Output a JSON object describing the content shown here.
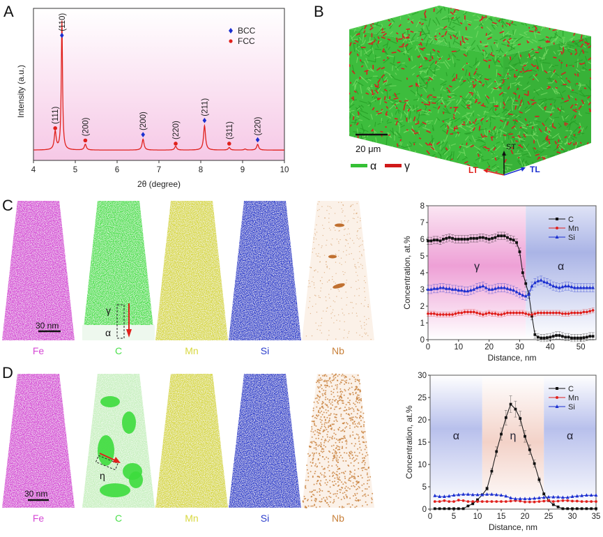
{
  "panels": {
    "A": "A",
    "B": "B",
    "C": "C",
    "D": "D"
  },
  "colors": {
    "red": "#e0201c",
    "blue": "#1b2fd0",
    "black": "#111111",
    "bcc": "#1b2fd0",
    "fcc": "#e0201c",
    "alpha_green": "#35c035",
    "gamma_red": "#d01818",
    "fe": "#d64ad6",
    "c": "#4de04d",
    "mn": "#d8d840",
    "si": "#2a3ccc",
    "nb": "#c8803a"
  },
  "panel_b": {
    "scale_bar": "20 μm",
    "legend": [
      {
        "symbol": "α",
        "color": "#35c035"
      },
      {
        "symbol": "γ",
        "color": "#d01818"
      }
    ],
    "axes": {
      "st": "ST",
      "lt": "LT",
      "tl": "TL"
    }
  },
  "panel_c": {
    "scale_bar": "30 nm",
    "elements": [
      "Fe",
      "C",
      "Mn",
      "Si",
      "Nb"
    ],
    "phase_labels": {
      "gamma": "γ",
      "alpha": "α"
    }
  },
  "panel_d": {
    "scale_bar": "30 nm",
    "elements": [
      "Fe",
      "C",
      "Mn",
      "Si",
      "Nb"
    ],
    "phase_labels": {
      "eta": "η"
    }
  },
  "chart_data": [
    {
      "id": "A",
      "type": "line",
      "title": "",
      "xlabel": "2θ (degree)",
      "ylabel": "Intensity (a.u.)",
      "xlim": [
        4,
        10
      ],
      "ylim": [
        -0.08,
        1.1
      ],
      "xticks": [
        4,
        5,
        6,
        7,
        8,
        9,
        10
      ],
      "grid": false,
      "legend": {
        "position": "top-right",
        "entries": [
          {
            "label": "BCC",
            "marker": "diamond"
          },
          {
            "label": "FCC",
            "marker": "circle"
          }
        ]
      },
      "peaks": [
        {
          "x": 4.52,
          "height": 0.14,
          "phase": "FCC",
          "label": "(111)",
          "marker_y": 0.17
        },
        {
          "x": 4.68,
          "height": 1.0,
          "phase": "BCC",
          "label": "(110)",
          "marker_y": 0.89
        },
        {
          "x": 5.24,
          "height": 0.045,
          "phase": "FCC",
          "label": "(200)",
          "marker_y": 0.075
        },
        {
          "x": 6.62,
          "height": 0.085,
          "phase": "BCC",
          "label": "(200)",
          "marker_y": 0.12
        },
        {
          "x": 7.4,
          "height": 0.03,
          "phase": "FCC",
          "label": "(220)",
          "marker_y": 0.05
        },
        {
          "x": 8.09,
          "height": 0.19,
          "phase": "BCC",
          "label": "(211)",
          "marker_y": 0.23
        },
        {
          "x": 8.68,
          "height": 0.02,
          "phase": "FCC",
          "label": "(311)",
          "marker_y": 0.05
        },
        {
          "x": 9.06,
          "height": 0.008,
          "phase": "",
          "label": "",
          "marker_y": null
        },
        {
          "x": 9.36,
          "height": 0.045,
          "phase": "BCC",
          "label": "(220)",
          "marker_y": 0.08
        }
      ]
    },
    {
      "id": "C",
      "type": "line",
      "xlabel": "Distance, nm",
      "ylabel": "Concentration, at.%",
      "xlim": [
        0,
        55
      ],
      "ylim": [
        0,
        8
      ],
      "xticks": [
        0,
        10,
        20,
        30,
        40,
        50
      ],
      "yticks": [
        0,
        1,
        2,
        3,
        4,
        5,
        6,
        7,
        8
      ],
      "legend": {
        "position": "top-right"
      },
      "regions": [
        {
          "from": 0,
          "to": 32,
          "label": "γ",
          "phase": "gamma"
        },
        {
          "from": 32,
          "to": 55,
          "label": "α",
          "phase": "alpha"
        }
      ],
      "x_start": 0,
      "x_step": 1,
      "series": [
        {
          "name": "C",
          "color": "#111111",
          "marker": "square",
          "error": 0.22,
          "values": [
            5.9,
            5.9,
            5.95,
            5.95,
            5.9,
            6.0,
            6.05,
            6.1,
            6.05,
            6.0,
            6.0,
            6.0,
            6.0,
            6.0,
            6.05,
            6.05,
            6.05,
            6.1,
            6.1,
            6.05,
            6.0,
            6.05,
            6.1,
            6.2,
            6.2,
            6.2,
            6.1,
            6.0,
            5.95,
            5.8,
            5.25,
            4.0,
            3.35,
            2.7,
            1.4,
            0.3,
            0.15,
            0.1,
            0.1,
            0.12,
            0.15,
            0.2,
            0.25,
            0.25,
            0.2,
            0.15,
            0.15,
            0.1,
            0.1,
            0.1,
            0.1,
            0.12,
            0.15,
            0.2,
            0.2
          ]
        },
        {
          "name": "Mn",
          "color": "#e0201c",
          "marker": "circle",
          "error": 0.15,
          "values": [
            1.55,
            1.55,
            1.55,
            1.5,
            1.5,
            1.5,
            1.5,
            1.5,
            1.5,
            1.55,
            1.6,
            1.6,
            1.65,
            1.65,
            1.65,
            1.65,
            1.6,
            1.55,
            1.5,
            1.55,
            1.6,
            1.55,
            1.55,
            1.5,
            1.5,
            1.55,
            1.6,
            1.6,
            1.6,
            1.6,
            1.6,
            1.6,
            1.55,
            1.5,
            1.5,
            1.55,
            1.6,
            1.6,
            1.6,
            1.6,
            1.6,
            1.6,
            1.6,
            1.6,
            1.55,
            1.55,
            1.55,
            1.6,
            1.6,
            1.6,
            1.6,
            1.65,
            1.65,
            1.7,
            1.75
          ]
        },
        {
          "name": "Si",
          "color": "#1b2fd0",
          "marker": "triangle",
          "error": 0.25,
          "values": [
            3.0,
            3.0,
            3.05,
            3.05,
            3.1,
            3.1,
            3.05,
            3.05,
            3.0,
            3.0,
            2.95,
            2.95,
            2.9,
            2.9,
            2.95,
            3.0,
            3.1,
            3.15,
            3.2,
            3.1,
            3.0,
            3.0,
            3.05,
            3.1,
            3.1,
            3.1,
            3.05,
            3.0,
            2.95,
            2.85,
            2.75,
            2.65,
            2.6,
            2.7,
            3.2,
            3.4,
            3.5,
            3.55,
            3.45,
            3.4,
            3.3,
            3.2,
            3.15,
            3.1,
            3.15,
            3.2,
            3.2,
            3.15,
            3.1,
            3.1,
            3.1,
            3.1,
            3.1,
            3.1,
            3.1
          ]
        }
      ]
    },
    {
      "id": "D",
      "type": "line",
      "xlabel": "Distance, nm",
      "ylabel": "Concentration, at.%",
      "xlim": [
        0,
        35
      ],
      "ylim": [
        0,
        30
      ],
      "xticks": [
        0,
        5,
        10,
        15,
        20,
        25,
        30,
        35
      ],
      "yticks": [
        0,
        5,
        10,
        15,
        20,
        25,
        30
      ],
      "legend": {
        "position": "top-right"
      },
      "regions": [
        {
          "from": 0,
          "to": 11,
          "label": "α",
          "phase": "alpha"
        },
        {
          "from": 11,
          "to": 24,
          "label": "η",
          "phase": "eta"
        },
        {
          "from": 24,
          "to": 35,
          "label": "α",
          "phase": "alpha"
        }
      ],
      "x_start": 1,
      "x_step": 1,
      "series": [
        {
          "name": "C",
          "color": "#111111",
          "marker": "square",
          "error_rel": 0.08,
          "values": [
            0.1,
            0.1,
            0.1,
            0.1,
            0.1,
            0.1,
            0.1,
            0.7,
            1.2,
            2.1,
            3.2,
            4.6,
            8.5,
            12.9,
            16.8,
            20.5,
            23.5,
            22.4,
            20.3,
            16.3,
            13.3,
            10.2,
            6.6,
            3.4,
            1.9,
            1.0,
            0.5,
            0.1,
            0.1,
            0.1,
            0.1,
            0.1,
            0.1,
            0.1,
            0.1
          ]
        },
        {
          "name": "Mn",
          "color": "#e0201c",
          "marker": "circle",
          "error": 0,
          "values": [
            1.7,
            1.7,
            1.9,
            1.7,
            1.7,
            2.0,
            1.9,
            1.7,
            1.7,
            1.7,
            1.7,
            1.7,
            1.7,
            1.7,
            1.7,
            1.7,
            1.8,
            1.9,
            1.8,
            1.6,
            1.6,
            1.6,
            1.7,
            1.8,
            1.9,
            1.7,
            1.8,
            1.9,
            1.9,
            1.8,
            1.8,
            1.7,
            1.7,
            1.7,
            1.7
          ]
        },
        {
          "name": "Si",
          "color": "#1b2fd0",
          "marker": "triangle",
          "error": 0,
          "values": [
            3.0,
            2.8,
            2.8,
            2.9,
            3.1,
            3.2,
            3.3,
            3.3,
            3.2,
            3.2,
            3.2,
            3.3,
            3.3,
            3.2,
            3.1,
            2.9,
            2.5,
            2.3,
            2.3,
            2.3,
            2.3,
            2.4,
            2.5,
            2.6,
            2.7,
            2.7,
            2.7,
            2.6,
            2.6,
            2.8,
            2.9,
            3.0,
            3.1,
            3.1,
            3.1
          ]
        }
      ]
    }
  ]
}
